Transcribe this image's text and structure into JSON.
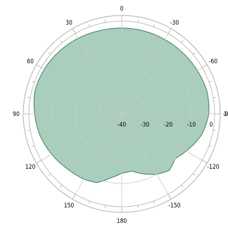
{
  "chart_data": {
    "type": "polar",
    "angular_tick_labels": [
      "0",
      "30",
      "60",
      "90",
      "120",
      "150",
      "180",
      "-150",
      "-120",
      "-90",
      "-60",
      "-30"
    ],
    "radial_tick_labels": [
      "-40",
      "-30",
      "-20",
      "-10",
      "0"
    ],
    "radial_axis_end_label": "1",
    "r_range": [
      -40,
      0
    ],
    "angle_zero": "top",
    "positive_angles": "counterclockwise",
    "grid": true,
    "series": [
      {
        "values": [
          {
            "angle": 0,
            "r": -3.0
          },
          {
            "angle": 15,
            "r": -2.9
          },
          {
            "angle": 30,
            "r": -2.4
          },
          {
            "angle": 45,
            "r": -1.9
          },
          {
            "angle": 60,
            "r": -1.5
          },
          {
            "angle": 75,
            "r": -1.3
          },
          {
            "angle": 90,
            "r": -2.5
          },
          {
            "angle": 105,
            "r": -3.6
          },
          {
            "angle": 120,
            "r": -5.2
          },
          {
            "angle": 135,
            "r": -6.7
          },
          {
            "angle": 150,
            "r": -7.5
          },
          {
            "angle": 160,
            "r": -8.5
          },
          {
            "angle": 170,
            "r": -12.0
          },
          {
            "angle": 180,
            "r": -14.5
          },
          {
            "angle": -170,
            "r": -15.0
          },
          {
            "angle": -160,
            "r": -12.5
          },
          {
            "angle": -150,
            "r": -10.0
          },
          {
            "angle": -140,
            "r": -8.2
          },
          {
            "angle": -130,
            "r": -10.0
          },
          {
            "angle": -120,
            "r": -8.0
          },
          {
            "angle": -105,
            "r": -4.5
          },
          {
            "angle": -90,
            "r": -2.5
          },
          {
            "angle": -75,
            "r": -2.0
          },
          {
            "angle": -60,
            "r": -2.5
          },
          {
            "angle": -45,
            "r": -2.8
          },
          {
            "angle": -30,
            "r": -3.0
          },
          {
            "angle": -15,
            "r": -3.0
          }
        ]
      }
    ]
  },
  "colors": {
    "fill": "#a9cfbc",
    "outline": "#3d7f63",
    "grid": "#c8c8c8",
    "frame": "#b0b0b0",
    "text": "#000000"
  }
}
